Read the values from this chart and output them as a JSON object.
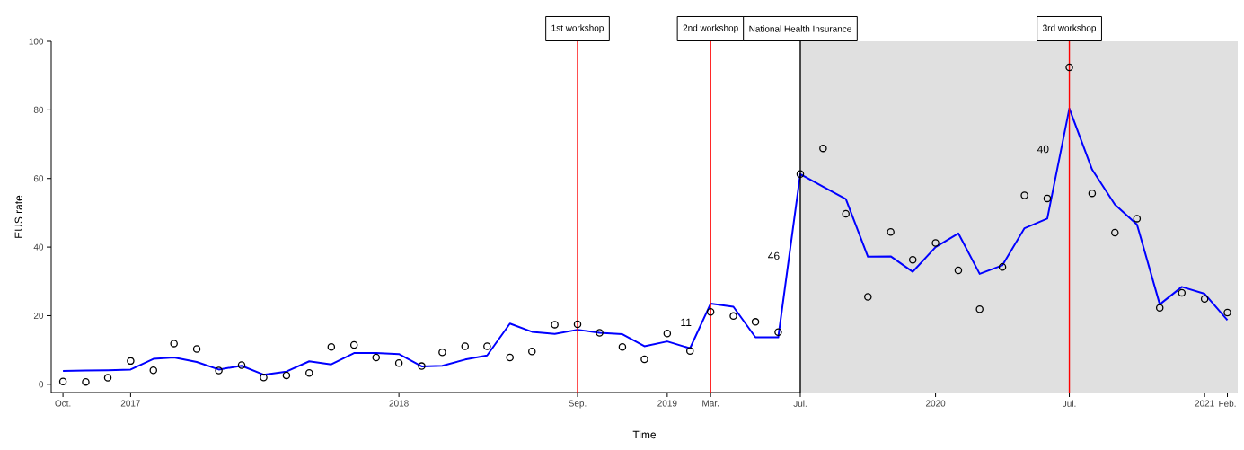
{
  "chart_data": {
    "type": "line",
    "xlabel": "Time",
    "ylabel": "EUS rate",
    "x": [
      "2016-10",
      "2016-11",
      "2016-12",
      "2017-01",
      "2017-02",
      "2017-03",
      "2017-04",
      "2017-05",
      "2017-06",
      "2017-07",
      "2017-08",
      "2017-09",
      "2017-10",
      "2017-11",
      "2017-12",
      "2018-01",
      "2018-02",
      "2018-03",
      "2018-04",
      "2018-05",
      "2018-06",
      "2018-07",
      "2018-08",
      "2018-09",
      "2018-10",
      "2018-11",
      "2018-12",
      "2019-01",
      "2019-02",
      "2019-03",
      "2019-04",
      "2019-05",
      "2019-06",
      "2019-07",
      "2019-08",
      "2019-09",
      "2019-10",
      "2019-11",
      "2019-12",
      "2020-01",
      "2020-02",
      "2020-03",
      "2020-04",
      "2020-05",
      "2020-06",
      "2020-07",
      "2020-08",
      "2020-09",
      "2020-10",
      "2020-11",
      "2020-12",
      "2021-01",
      "2021-02"
    ],
    "series": [
      {
        "type": "scatter",
        "color": "#000000",
        "marker": "circle",
        "values": [
          0.8,
          0.7,
          1.9,
          6.8,
          4.1,
          11.9,
          10.3,
          4.0,
          5.6,
          2.0,
          2.6,
          3.3,
          10.9,
          11.5,
          7.8,
          6.2,
          5.3,
          9.3,
          11.1,
          11.1,
          7.8,
          9.6,
          17.4,
          17.5,
          15.0,
          10.9,
          7.3,
          14.8,
          9.7,
          21.1,
          19.9,
          18.2,
          15.2,
          61.3,
          68.8,
          49.7,
          25.5,
          44.4,
          36.3,
          41.2,
          33.2,
          21.9,
          34.2,
          55.1,
          54.2,
          92.4,
          55.7,
          44.2,
          48.3,
          22.3,
          26.7,
          24.9,
          20.9
        ]
      },
      {
        "color": "#0000ff",
        "values": [
          3.9,
          4.0,
          4.1,
          4.3,
          7.4,
          7.8,
          6.5,
          4.3,
          5.4,
          2.8,
          3.7,
          6.7,
          5.8,
          9.1,
          9.1,
          8.8,
          5.2,
          5.4,
          7.2,
          8.4,
          17.7,
          15.3,
          14.7,
          15.9,
          15.0,
          14.6,
          11.1,
          12.5,
          10.5,
          23.5,
          22.6,
          13.7,
          13.7,
          61.3,
          57.6,
          54.0,
          37.2,
          37.3,
          32.8,
          40.0,
          44.0,
          32.2,
          34.7,
          45.5,
          48.3,
          80.4,
          62.6,
          52.4,
          46.6,
          23.3,
          28.4,
          26.4,
          18.7
        ]
      }
    ],
    "xlim": [
      "2016-09-15",
      "2021-02-15"
    ],
    "ylim": [
      -2.4,
      100
    ],
    "xticks": [
      {
        "value": "2016-10",
        "label": "Oct."
      },
      {
        "value": "2017-01",
        "label": "2017"
      },
      {
        "value": "2018-01",
        "label": "2018"
      },
      {
        "value": "2018-09",
        "label": "Sep."
      },
      {
        "value": "2019-01",
        "label": "2019"
      },
      {
        "value": "2019-03",
        "label": "Mar."
      },
      {
        "value": "2019-07",
        "label": "Jul."
      },
      {
        "value": "2020-01",
        "label": "2020"
      },
      {
        "value": "2020-07",
        "label": "Jul."
      },
      {
        "value": "2021-01",
        "label": "2021"
      },
      {
        "value": "2021-02",
        "label": "Feb."
      }
    ],
    "yticks": [
      0,
      20,
      40,
      60,
      80,
      100
    ],
    "ref_lines": [
      {
        "axis": "x",
        "value": "2018-09",
        "label": "1st workshop",
        "color": "#ff0000"
      },
      {
        "axis": "x",
        "value": "2019-03",
        "label": "2nd workshop",
        "color": "#ff0000"
      },
      {
        "axis": "x",
        "value": "2019-07",
        "label": "National Health Insurance",
        "color": "#000000"
      },
      {
        "axis": "x",
        "value": "2020-07",
        "label": "3rd workshop",
        "color": "#ff0000"
      }
    ],
    "bands": [
      {
        "axis": "x",
        "from": "2019-07",
        "to": "2021-02-15",
        "color": "#e0e0e0"
      }
    ],
    "annotations": [
      "11",
      "46",
      "40"
    ]
  }
}
